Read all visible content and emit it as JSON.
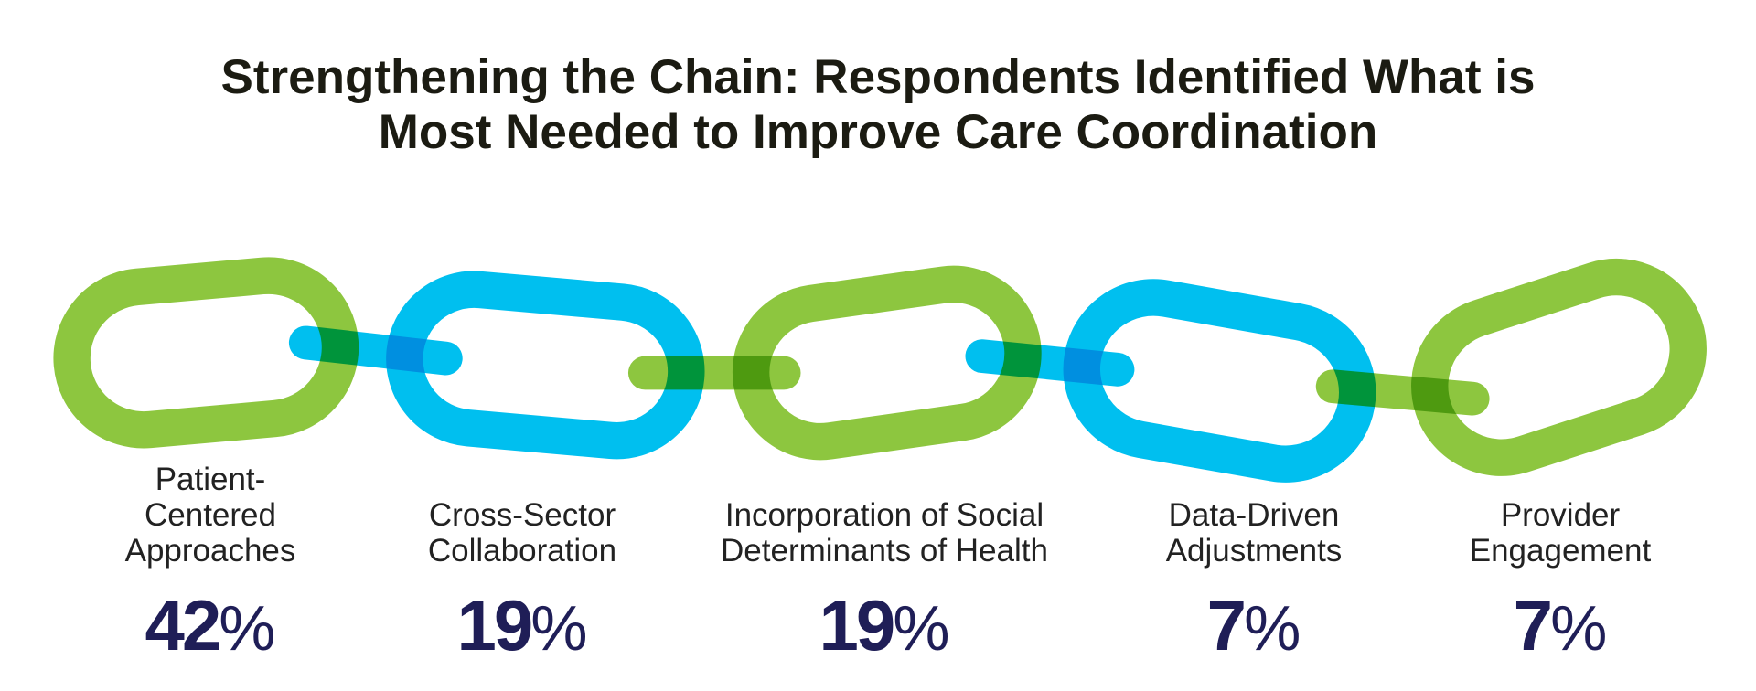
{
  "title": {
    "line1": "Strengthening the Chain: Respondents Identified What is",
    "line2": "Most Needed to Improve Care Coordination"
  },
  "colors": {
    "green": "#8DC63F",
    "blue": "#00BFEF",
    "navy": "#1F1E57"
  },
  "items": [
    {
      "label_lines": [
        "Patient-",
        "Centered",
        "Approaches"
      ],
      "value": "42",
      "sign": "%",
      "color": "green"
    },
    {
      "label_lines": [
        "Cross-Sector",
        "Collaboration"
      ],
      "value": "19",
      "sign": "%",
      "color": "blue"
    },
    {
      "label_lines": [
        "Incorporation of Social",
        "Determinants of Health"
      ],
      "value": "19",
      "sign": "%",
      "color": "green"
    },
    {
      "label_lines": [
        "Data-Driven",
        "Adjustments"
      ],
      "value": "7",
      "sign": "%",
      "color": "blue"
    },
    {
      "label_lines": [
        "Provider",
        "Engagement"
      ],
      "value": "7",
      "sign": "%",
      "color": "green"
    }
  ]
}
